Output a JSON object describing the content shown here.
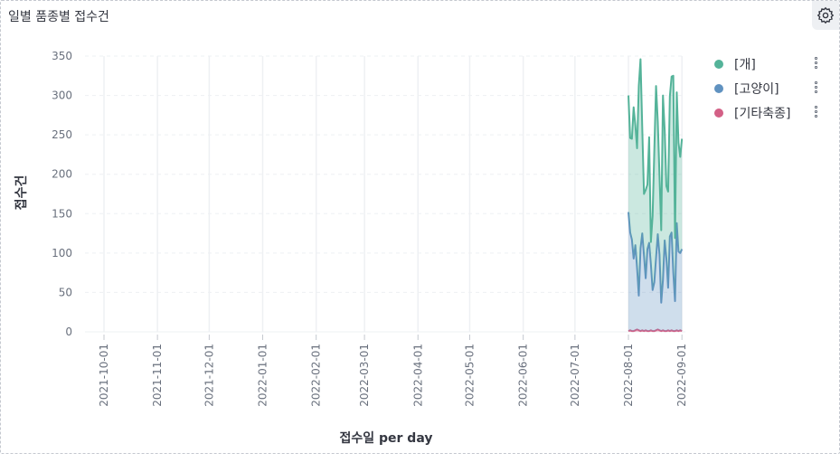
{
  "panel": {
    "title": "일별 품종별 접수건",
    "settings_icon": "gear-icon"
  },
  "legend": {
    "items": [
      {
        "label": "[개]",
        "color": "#54b399"
      },
      {
        "label": "[고양이]",
        "color": "#6092c0"
      },
      {
        "label": "[기타축종]",
        "color": "#d36086"
      }
    ],
    "menu_icon": "ellipsis-vertical-icon"
  },
  "chart_data": {
    "type": "area",
    "stacked": true,
    "xlabel": "접수일 per day",
    "ylabel": "접수건",
    "ylim": [
      0,
      350
    ],
    "yticks": [
      0,
      50,
      100,
      150,
      200,
      250,
      300,
      350
    ],
    "xlim": [
      "2021-09-20",
      "2022-09-03"
    ],
    "xticks": [
      "2021-10-01",
      "2021-11-01",
      "2021-12-01",
      "2022-01-01",
      "2022-02-01",
      "2022-03-01",
      "2022-04-01",
      "2022-05-01",
      "2022-06-01",
      "2022-07-01",
      "2022-08-01",
      "2022-09-01"
    ],
    "grid": true,
    "legend_position": "right",
    "dates": [
      "2022-08-01",
      "2022-08-02",
      "2022-08-03",
      "2022-08-04",
      "2022-08-05",
      "2022-08-06",
      "2022-08-07",
      "2022-08-08",
      "2022-08-09",
      "2022-08-10",
      "2022-08-11",
      "2022-08-12",
      "2022-08-13",
      "2022-08-14",
      "2022-08-15",
      "2022-08-16",
      "2022-08-17",
      "2022-08-18",
      "2022-08-19",
      "2022-08-20",
      "2022-08-21",
      "2022-08-22",
      "2022-08-23",
      "2022-08-24",
      "2022-08-25",
      "2022-08-26",
      "2022-08-27",
      "2022-08-28",
      "2022-08-29",
      "2022-08-30",
      "2022-08-31",
      "2022-09-01"
    ],
    "series": [
      {
        "name": "[기타축종]",
        "color": "#d36086",
        "values": [
          1,
          2,
          1,
          1,
          2,
          3,
          2,
          1,
          2,
          1,
          2,
          1,
          1,
          2,
          1,
          1,
          2,
          3,
          2,
          1,
          2,
          1,
          1,
          2,
          1,
          2,
          1,
          1,
          2,
          1,
          2,
          1
        ]
      },
      {
        "name": "[고양이]",
        "color": "#6092c0",
        "values": [
          151,
          124,
          116,
          92,
          108,
          78,
          44,
          105,
          123,
          96,
          66,
          104,
          112,
          84,
          52,
          62,
          92,
          121,
          96,
          36,
          64,
          115,
          92,
          54,
          120,
          124,
          74,
          38,
          136,
          101,
          98,
          104
        ]
      },
      {
        "name": "[개]",
        "color": "#54b399",
        "values": [
          148,
          120,
          128,
          192,
          152,
          152,
          266,
          240,
          134,
          78,
          112,
          82,
          134,
          28,
          94,
          168,
          218,
          143,
          100,
          92,
          234,
          140,
          92,
          122,
          178,
          198,
          250,
          80,
          166,
          138,
          122,
          140
        ]
      }
    ]
  }
}
